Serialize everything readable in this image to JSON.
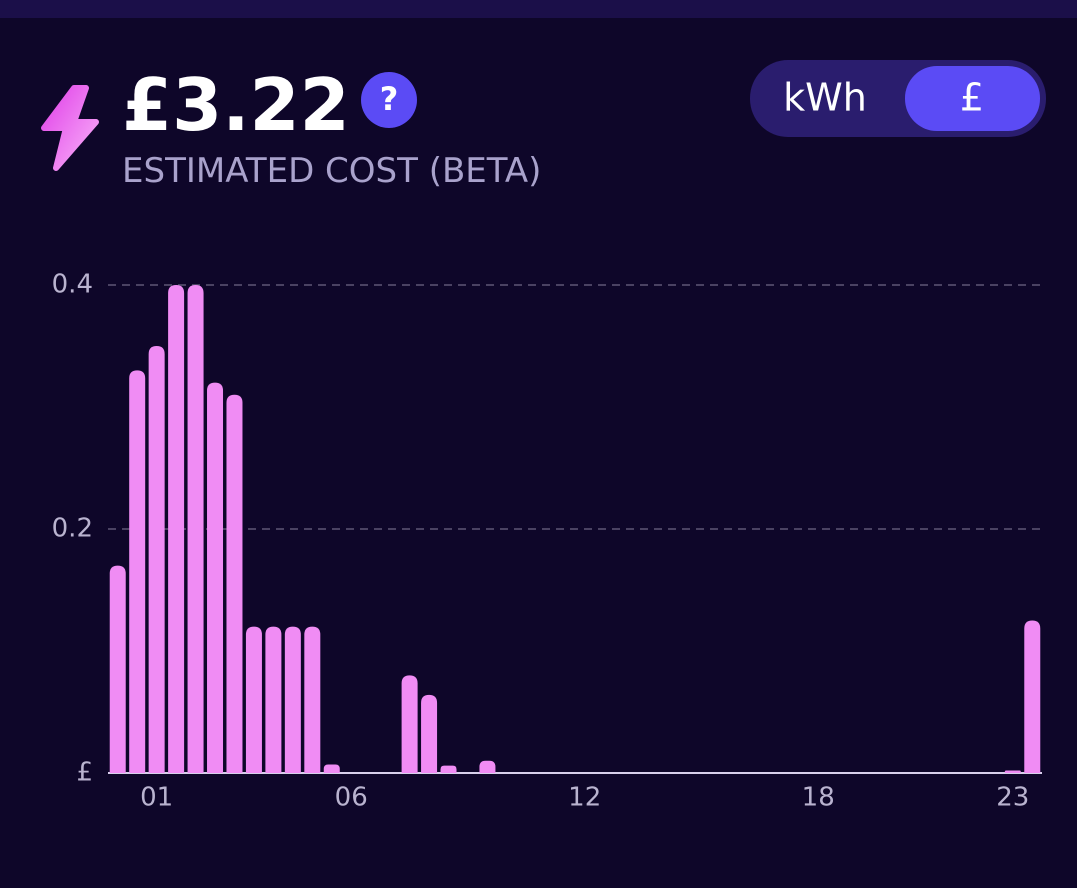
{
  "header": {
    "amount": "£3.22",
    "help": "?",
    "subtitle": "ESTIMATED COST (BETA)",
    "toggle": [
      "kWh",
      "£"
    ]
  },
  "chart_data": {
    "type": "bar",
    "color": "#f08cf4",
    "categories": [
      null,
      null,
      "01",
      null,
      null,
      null,
      null,
      null,
      null,
      null,
      null,
      null,
      "06",
      null,
      null,
      null,
      null,
      null,
      null,
      null,
      null,
      null,
      null,
      null,
      "12",
      null,
      null,
      null,
      null,
      null,
      null,
      null,
      null,
      null,
      null,
      null,
      "18",
      null,
      null,
      null,
      null,
      null,
      null,
      null,
      null,
      null,
      "23",
      null
    ],
    "values": [
      0.17,
      0.33,
      0.35,
      0.4,
      0.4,
      0.32,
      0.31,
      0.12,
      0.12,
      0.12,
      0.12,
      0.007,
      0,
      0,
      0,
      0.08,
      0.064,
      0.006,
      0,
      0.01,
      0,
      0,
      0,
      0,
      0,
      0,
      0,
      0,
      0,
      0,
      0,
      0,
      0,
      0,
      0,
      0,
      0,
      0,
      0,
      0,
      0,
      0,
      0,
      0,
      0,
      0,
      0.002,
      0.125
    ],
    "ylim": [
      0,
      0.4
    ],
    "yticks": [
      {
        "value": 0,
        "label": "£"
      },
      0.2,
      0.4
    ],
    "grid": true
  }
}
